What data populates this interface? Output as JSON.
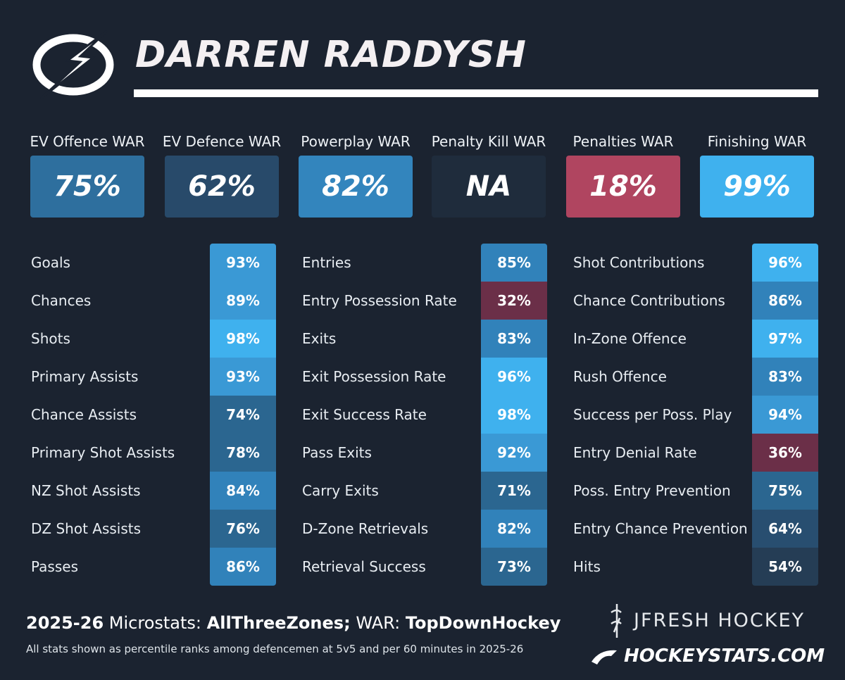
{
  "header": {
    "title": "DARREN RADDYSH"
  },
  "war": [
    {
      "label": "EV Offence WAR",
      "value": "75%"
    },
    {
      "label": "EV Defence WAR",
      "value": "62%"
    },
    {
      "label": "Powerplay WAR",
      "value": "82%"
    },
    {
      "label": "Penalty Kill WAR",
      "value": "NA"
    },
    {
      "label": "Penalties WAR",
      "value": "18%"
    },
    {
      "label": "Finishing WAR",
      "value": "99%"
    }
  ],
  "stats": [
    [
      [
        "Goals",
        "93%"
      ],
      [
        "Chances",
        "89%"
      ],
      [
        "Shots",
        "98%"
      ],
      [
        "Primary Assists",
        "93%"
      ],
      [
        "Chance Assists",
        "74%"
      ],
      [
        "Primary Shot Assists",
        "78%"
      ],
      [
        "NZ Shot Assists",
        "84%"
      ],
      [
        "DZ Shot Assists",
        "76%"
      ],
      [
        "Passes",
        "86%"
      ]
    ],
    [
      [
        "Entries",
        "85%"
      ],
      [
        "Entry Possession Rate",
        "32%"
      ],
      [
        "Exits",
        "83%"
      ],
      [
        "Exit Possession Rate",
        "96%"
      ],
      [
        "Exit Success Rate",
        "98%"
      ],
      [
        "Pass Exits",
        "92%"
      ],
      [
        "Carry Exits",
        "71%"
      ],
      [
        "D-Zone Retrievals",
        "82%"
      ],
      [
        "Retrieval Success",
        "73%"
      ]
    ],
    [
      [
        "Shot Contributions",
        "96%"
      ],
      [
        "Chance Contributions",
        "86%"
      ],
      [
        "In-Zone Offence",
        "97%"
      ],
      [
        "Rush Offence",
        "83%"
      ],
      [
        "Success per Poss. Play",
        "94%"
      ],
      [
        "Entry Denial Rate",
        "36%"
      ],
      [
        "Poss. Entry Prevention",
        "75%"
      ],
      [
        "Entry Chance Prevention",
        "64%"
      ],
      [
        "Hits",
        "54%"
      ]
    ]
  ],
  "footer": {
    "season": "2025-26",
    "microstats_label": "Microstats:",
    "microstats_source": "AllThreeZones;",
    "war_label": "WAR:",
    "war_source": "TopDownHockey",
    "note": "All stats shown as percentile ranks among defencemen at 5v5 and per 60 minutes in 2025-26"
  },
  "brands": {
    "jfresh": "JFRESH HOCKEY",
    "hockeystats": "HOCKEYSTATS.COM"
  }
}
